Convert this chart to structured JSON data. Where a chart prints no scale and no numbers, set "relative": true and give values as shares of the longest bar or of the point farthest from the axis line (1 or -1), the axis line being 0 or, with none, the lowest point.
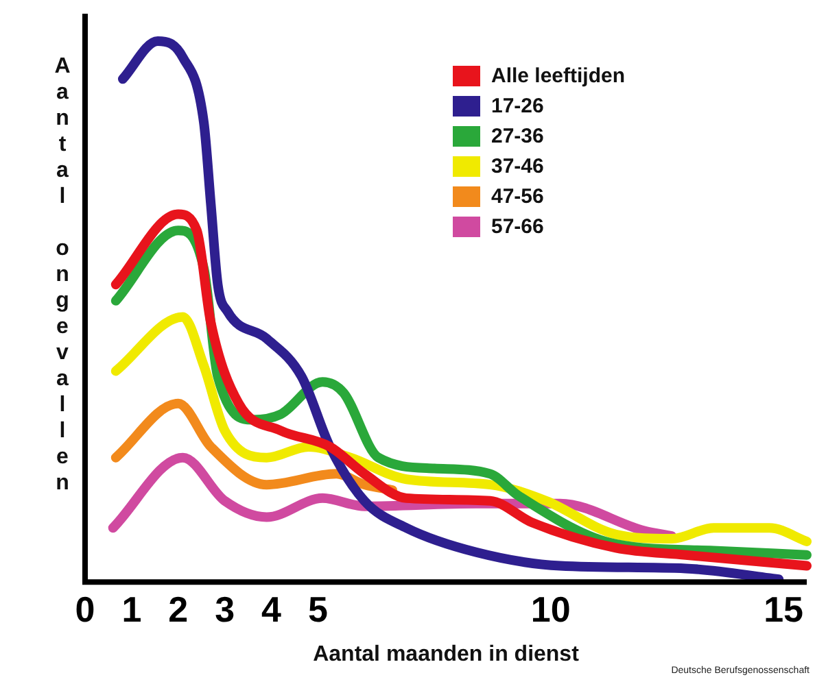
{
  "chart_data": {
    "type": "line",
    "relative": true,
    "xlabel": "Aantal maanden in dienst",
    "ylabel": "Aantal ongevallen",
    "xlim": [
      0,
      15.5
    ],
    "xticks": [
      0,
      1,
      2,
      3,
      4,
      5,
      10,
      15
    ],
    "legend": "top right",
    "grid": false,
    "marker": "none",
    "line_style": "solid",
    "annotations": [
      "Deutsche Berufsgenossenschaft"
    ],
    "series": [
      {
        "name": "Alle leeftijden",
        "color": "#e8141c",
        "x": [
          0.66,
          2.0,
          2.4,
          2.7,
          3.3,
          4.2,
          5.26,
          6.0,
          6.9,
          8.7,
          9.6,
          11.4,
          12.9,
          15.5
        ],
        "values": [
          0.55,
          0.68,
          0.65,
          0.48,
          0.33,
          0.28,
          0.25,
          0.2,
          0.155,
          0.15,
          0.11,
          0.063,
          0.05,
          0.03
        ]
      },
      {
        "name": "17-26",
        "color": "#2e1f8f",
        "x": [
          0.81,
          1.56,
          2.1,
          2.55,
          2.7,
          2.85,
          3.06,
          3.9,
          4.65,
          5.26,
          6.0,
          6.9,
          8.4,
          10.2,
          12.9,
          14.9
        ],
        "values": [
          0.93,
          1,
          0.97,
          0.85,
          0.7,
          0.55,
          0.5,
          0.45,
          0.38,
          0.25,
          0.15,
          0.1,
          0.055,
          0.03,
          0.025,
          0.005
        ]
      },
      {
        "name": "27-36",
        "color": "#2aa83a",
        "x": [
          0.66,
          2.0,
          2.55,
          2.85,
          3.6,
          4.2,
          5.1,
          5.55,
          6.3,
          7.5,
          8.7,
          9.3,
          11.4,
          13.5,
          15.5
        ],
        "values": [
          0.52,
          0.65,
          0.58,
          0.38,
          0.3,
          0.31,
          0.37,
          0.35,
          0.23,
          0.21,
          0.2,
          0.16,
          0.07,
          0.058,
          0.05
        ]
      },
      {
        "name": "37-46",
        "color": "#f0ea00",
        "x": [
          0.66,
          2.1,
          2.55,
          3.0,
          3.9,
          4.8,
          5.7,
          6.9,
          8.7,
          9.9,
          11.4,
          12.6,
          13.5,
          14.7,
          15.5
        ],
        "values": [
          0.39,
          0.49,
          0.4,
          0.28,
          0.23,
          0.25,
          0.23,
          0.19,
          0.18,
          0.15,
          0.088,
          0.08,
          0.1,
          0.1,
          0.075
        ]
      },
      {
        "name": "47-56",
        "color": "#f28a1c",
        "x": [
          0.66,
          2.0,
          2.7,
          3.9,
          5.4,
          6.0,
          6.6
        ],
        "values": [
          0.23,
          0.33,
          0.25,
          0.18,
          0.2,
          0.18,
          0.17
        ]
      },
      {
        "name": "57-66",
        "color": "#d04aa0",
        "x": [
          0.6,
          2.1,
          3.0,
          3.9,
          5.1,
          6.0,
          8.4,
          10.2,
          12.0,
          12.6
        ],
        "values": [
          0.1,
          0.23,
          0.15,
          0.12,
          0.155,
          0.14,
          0.145,
          0.145,
          0.095,
          0.085
        ]
      }
    ]
  }
}
